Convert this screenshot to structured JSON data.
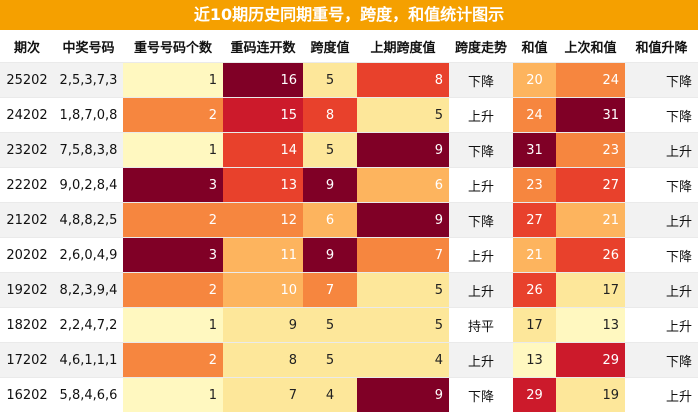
{
  "title": "近10期历史同期重号，跨度，和值统计图示",
  "headers": [
    "期次",
    "中奖号码",
    "重号号码个数",
    "重码连开数",
    "跨度值",
    "上期跨度值",
    "跨度走势",
    "和值",
    "上次和值",
    "和值升降"
  ],
  "rows": [
    {
      "period": "25202",
      "numbers": "2,5,3,7,3",
      "repeat_count": "1",
      "repeat_streak": "16",
      "span": "5",
      "prev_span": "8",
      "span_trend": "下降",
      "sum": "20",
      "prev_sum": "24",
      "sum_trend": "下降"
    },
    {
      "period": "24202",
      "numbers": "1,8,7,0,8",
      "repeat_count": "2",
      "repeat_streak": "15",
      "span": "8",
      "prev_span": "5",
      "span_trend": "上升",
      "sum": "24",
      "prev_sum": "31",
      "sum_trend": "下降"
    },
    {
      "period": "23202",
      "numbers": "7,5,8,3,8",
      "repeat_count": "1",
      "repeat_streak": "14",
      "span": "5",
      "prev_span": "9",
      "span_trend": "下降",
      "sum": "31",
      "prev_sum": "23",
      "sum_trend": "上升"
    },
    {
      "period": "22202",
      "numbers": "9,0,2,8,4",
      "repeat_count": "3",
      "repeat_streak": "13",
      "span": "9",
      "prev_span": "6",
      "span_trend": "上升",
      "sum": "23",
      "prev_sum": "27",
      "sum_trend": "下降"
    },
    {
      "period": "21202",
      "numbers": "4,8,8,2,5",
      "repeat_count": "2",
      "repeat_streak": "12",
      "span": "6",
      "prev_span": "9",
      "span_trend": "下降",
      "sum": "27",
      "prev_sum": "21",
      "sum_trend": "上升"
    },
    {
      "period": "20202",
      "numbers": "2,6,0,4,9",
      "repeat_count": "3",
      "repeat_streak": "11",
      "span": "9",
      "prev_span": "7",
      "span_trend": "上升",
      "sum": "21",
      "prev_sum": "26",
      "sum_trend": "下降"
    },
    {
      "period": "19202",
      "numbers": "8,2,3,9,4",
      "repeat_count": "2",
      "repeat_streak": "10",
      "span": "7",
      "prev_span": "5",
      "span_trend": "上升",
      "sum": "26",
      "prev_sum": "17",
      "sum_trend": "上升"
    },
    {
      "period": "18202",
      "numbers": "2,2,4,7,2",
      "repeat_count": "1",
      "repeat_streak": "9",
      "span": "5",
      "prev_span": "5",
      "span_trend": "持平",
      "sum": "17",
      "prev_sum": "13",
      "sum_trend": "上升"
    },
    {
      "period": "17202",
      "numbers": "4,6,1,1,1",
      "repeat_count": "2",
      "repeat_streak": "8",
      "span": "5",
      "prev_span": "4",
      "span_trend": "上升",
      "sum": "13",
      "prev_sum": "29",
      "sum_trend": "下降"
    },
    {
      "period": "16202",
      "numbers": "5,8,4,6,6",
      "repeat_count": "1",
      "repeat_streak": "7",
      "span": "4",
      "prev_span": "9",
      "span_trend": "下降",
      "sum": "29",
      "prev_sum": "19",
      "sum_trend": "上升"
    }
  ],
  "heat_colors": {
    "light": "#fff8c0",
    "pale": "#fde79a",
    "mid": "#fdb45e",
    "orange": "#f6863f",
    "red": "#e8412c",
    "crimson": "#cc1a2b",
    "dark": "#800026"
  },
  "alt_row_color": "#f2f2f2",
  "title_color": "#f5a000"
}
